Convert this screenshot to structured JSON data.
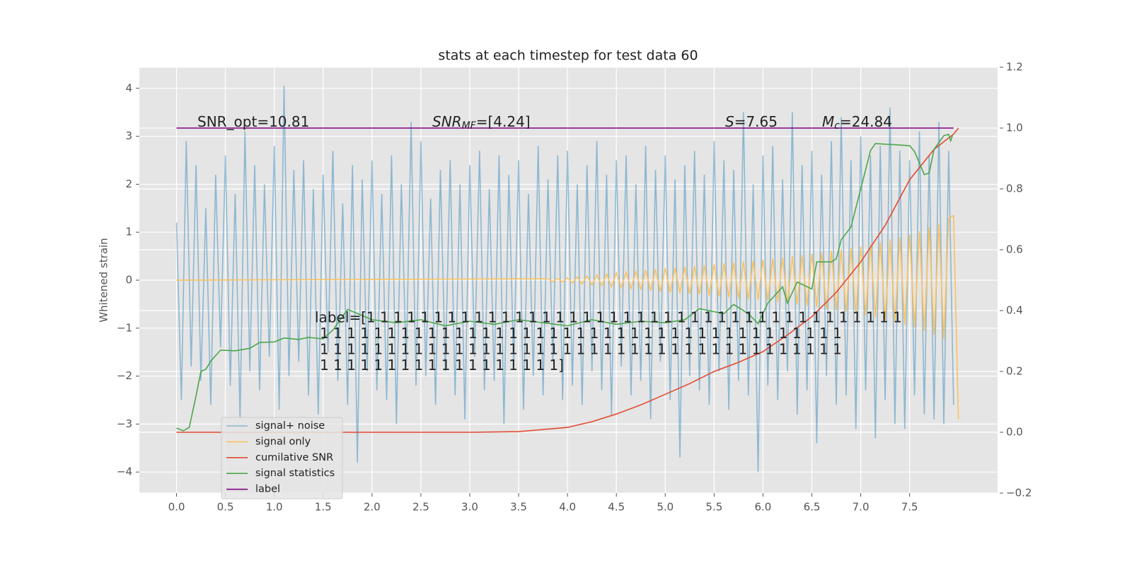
{
  "chart_data": {
    "type": "line",
    "title": "stats at each timestep for test data 60",
    "ylabel": "Whitened strain",
    "xlim": [
      -0.38,
      8.4
    ],
    "ylim": [
      -4.44,
      4.44
    ],
    "y2lim": [
      -0.2,
      1.2
    ],
    "xticks": [
      {
        "value": 0,
        "label": "0.0"
      },
      0.5,
      {
        "value": 1,
        "label": "1.0"
      },
      1.5,
      {
        "value": 2,
        "label": "2.0"
      },
      2.5,
      {
        "value": 3,
        "label": "3.0"
      },
      3.5,
      {
        "value": 4,
        "label": "4.0"
      },
      4.5,
      {
        "value": 5,
        "label": "5.0"
      },
      5.5,
      {
        "value": 6,
        "label": "6.0"
      },
      6.5,
      {
        "value": 7,
        "label": "7.0"
      },
      7.5
    ],
    "yticks": [
      {
        "value": -4,
        "label": "−4"
      },
      {
        "value": -3,
        "label": "−3"
      },
      {
        "value": -2,
        "label": "−2"
      },
      {
        "value": -1,
        "label": "−1"
      },
      0,
      1,
      2,
      3,
      4
    ],
    "y2ticks": [
      {
        "value": -0.2,
        "label": "−0.2"
      },
      {
        "value": 0,
        "label": "0.0"
      },
      0.2,
      0.4,
      0.6,
      0.8,
      {
        "value": 1,
        "label": "1.0"
      },
      1.2
    ],
    "grid": true,
    "legend": "lower left",
    "series": [
      {
        "name": "signal+ noise",
        "color": "#348ABD",
        "x": [
          0,
          0.05,
          0.1,
          0.15,
          0.2,
          0.25,
          0.3,
          0.35,
          0.4,
          0.45,
          0.5,
          0.55,
          0.6,
          0.65,
          0.7,
          0.75,
          0.8,
          0.85,
          0.9,
          0.95,
          1,
          1.05,
          1.1,
          1.15,
          1.2,
          1.25,
          1.3,
          1.35,
          1.4,
          1.45,
          1.5,
          1.55,
          1.6,
          1.65,
          1.7,
          1.75,
          1.8,
          1.85,
          1.9,
          1.95,
          2,
          2.05,
          2.1,
          2.15,
          2.2,
          2.25,
          2.3,
          2.35,
          2.4,
          2.45,
          2.5,
          2.55,
          2.6,
          2.65,
          2.7,
          2.75,
          2.8,
          2.85,
          2.9,
          2.95,
          3,
          3.05,
          3.1,
          3.15,
          3.2,
          3.25,
          3.3,
          3.35,
          3.4,
          3.45,
          3.5,
          3.55,
          3.6,
          3.65,
          3.7,
          3.75,
          3.8,
          3.85,
          3.9,
          3.95,
          4,
          4.05,
          4.1,
          4.15,
          4.2,
          4.25,
          4.3,
          4.35,
          4.4,
          4.45,
          4.5,
          4.55,
          4.6,
          4.65,
          4.7,
          4.75,
          4.8,
          4.85,
          4.9,
          4.95,
          5,
          5.05,
          5.1,
          5.15,
          5.2,
          5.25,
          5.3,
          5.35,
          5.4,
          5.45,
          5.5,
          5.55,
          5.6,
          5.65,
          5.7,
          5.75,
          5.8,
          5.85,
          5.9,
          5.95,
          6,
          6.05,
          6.1,
          6.15,
          6.2,
          6.25,
          6.3,
          6.35,
          6.4,
          6.45,
          6.5,
          6.55,
          6.6,
          6.65,
          6.7,
          6.75,
          6.8,
          6.85,
          6.9,
          6.95,
          7,
          7.05,
          7.1,
          7.15,
          7.2,
          7.25,
          7.3,
          7.35,
          7.4,
          7.45,
          7.5,
          7.55,
          7.6,
          7.65,
          7.7,
          7.75,
          7.8,
          7.85,
          7.9,
          7.95
        ],
        "values": [
          1.2,
          -2.5,
          2.9,
          -1.8,
          2.4,
          -2.1,
          1.5,
          -2.6,
          2.2,
          -1.4,
          2.6,
          -2.2,
          1.8,
          -2.9,
          3.1,
          -1.9,
          2.4,
          -2.3,
          2.0,
          -1.6,
          2.8,
          -2.7,
          4.05,
          -2.0,
          2.3,
          -1.7,
          2.5,
          -2.4,
          1.9,
          -2.8,
          2.2,
          -1.5,
          2.7,
          -2.1,
          1.6,
          -2.6,
          2.4,
          -3.8,
          2.1,
          -1.9,
          2.5,
          -2.3,
          1.8,
          -2.5,
          2.6,
          -3.0,
          2.0,
          -1.8,
          3.3,
          -2.2,
          2.9,
          -2.0,
          1.7,
          -2.6,
          2.3,
          -1.9,
          2.5,
          -2.4,
          2.0,
          -2.9,
          2.4,
          -1.6,
          2.7,
          -2.3,
          1.9,
          -2.1,
          2.6,
          -3.0,
          2.2,
          -1.8,
          2.5,
          -2.7,
          1.8,
          -2.0,
          2.8,
          -2.4,
          2.1,
          -1.7,
          2.6,
          -2.5,
          2.7,
          -2.2,
          2.0,
          -2.6,
          2.4,
          -1.9,
          2.9,
          -2.3,
          2.2,
          -2.8,
          2.5,
          -1.8,
          2.6,
          -2.4,
          2.0,
          -2.1,
          2.8,
          -2.9,
          2.3,
          -1.7,
          2.6,
          -2.5,
          2.1,
          -3.7,
          2.4,
          -2.0,
          2.7,
          -2.3,
          2.2,
          -2.6,
          2.9,
          -1.9,
          2.5,
          -2.7,
          2.3,
          -2.1,
          3.5,
          -2.4,
          2.0,
          -4.0,
          2.6,
          -2.2,
          2.8,
          -2.5,
          2.1,
          -1.9,
          3.5,
          -2.8,
          2.4,
          -2.3,
          2.7,
          -3.4,
          2.2,
          -2.0,
          2.9,
          -2.6,
          3.4,
          -2.4,
          2.5,
          -3.1,
          3.0,
          -2.3,
          2.6,
          -3.3,
          2.8,
          -2.5,
          3.6,
          -3.0,
          2.7,
          -3.1,
          2.5,
          -2.4,
          3.1,
          -2.8,
          2.6,
          -2.9,
          3.3,
          -3.0,
          2.7,
          -2.6
        ]
      },
      {
        "name": "signal only",
        "color": "#FBC15E",
        "x": [
          0,
          3.8,
          3.85,
          3.9,
          3.95,
          4,
          4.05,
          4.1,
          4.15,
          4.2,
          4.25,
          4.3,
          4.35,
          4.4,
          4.45,
          4.5,
          4.55,
          4.6,
          4.65,
          4.7,
          4.75,
          4.8,
          4.85,
          4.9,
          4.95,
          5,
          5.05,
          5.1,
          5.15,
          5.2,
          5.25,
          5.3,
          5.35,
          5.4,
          5.45,
          5.5,
          5.55,
          5.6,
          5.65,
          5.7,
          5.75,
          5.8,
          5.85,
          5.9,
          5.95,
          6,
          6.05,
          6.1,
          6.15,
          6.2,
          6.25,
          6.3,
          6.35,
          6.4,
          6.45,
          6.5,
          6.55,
          6.6,
          6.65,
          6.7,
          6.75,
          6.8,
          6.85,
          6.9,
          6.95,
          7,
          7.05,
          7.1,
          7.15,
          7.2,
          7.25,
          7.3,
          7.35,
          7.4,
          7.45,
          7.5,
          7.55,
          7.6,
          7.65,
          7.7,
          7.75,
          7.8,
          7.85,
          7.9,
          7.95,
          8
        ],
        "values": [
          0,
          0.03,
          -0.03,
          0.04,
          -0.04,
          0.05,
          -0.06,
          0.07,
          -0.08,
          0.09,
          -0.1,
          0.11,
          -0.12,
          0.13,
          -0.14,
          0.15,
          -0.16,
          0.17,
          -0.18,
          0.19,
          -0.2,
          0.21,
          -0.22,
          0.23,
          -0.24,
          0.25,
          -0.26,
          0.26,
          -0.27,
          0.28,
          -0.29,
          0.3,
          -0.3,
          0.31,
          -0.32,
          0.33,
          -0.34,
          0.35,
          -0.36,
          0.37,
          -0.38,
          0.39,
          -0.4,
          0.4,
          -0.41,
          0.42,
          -0.43,
          0.45,
          -0.46,
          0.47,
          -0.49,
          0.5,
          -0.51,
          0.52,
          -0.54,
          0.55,
          -0.57,
          0.58,
          -0.6,
          0.61,
          -0.63,
          0.64,
          -0.66,
          0.67,
          -0.69,
          0.7,
          -0.73,
          0.75,
          -0.78,
          0.8,
          -0.83,
          0.85,
          -0.88,
          0.9,
          -0.93,
          0.95,
          -0.99,
          1.02,
          -1.06,
          1.1,
          -1.14,
          1.18,
          -1.23,
          1.28,
          1.35,
          -2.9
        ]
      },
      {
        "name": "cumilative SNR",
        "color": "#E24A33",
        "axis": "y2",
        "x": [
          0,
          1,
          2,
          3,
          3.5,
          4,
          4.25,
          4.5,
          4.75,
          5,
          5.25,
          5.5,
          5.75,
          6,
          6.25,
          6.5,
          6.75,
          7,
          7.25,
          7.5,
          7.75,
          7.95,
          8
        ],
        "values": [
          0,
          0,
          0,
          0,
          0.002,
          0.016,
          0.035,
          0.06,
          0.09,
          0.125,
          0.16,
          0.2,
          0.23,
          0.265,
          0.32,
          0.38,
          0.46,
          0.56,
          0.68,
          0.83,
          0.93,
          0.98,
          1.0
        ]
      },
      {
        "name": "signal statistics",
        "color": "#4CA64C",
        "axis": "y2",
        "x": [
          0,
          0.07,
          0.13,
          0.2,
          0.25,
          0.3,
          0.35,
          0.45,
          0.6,
          0.75,
          0.85,
          1,
          1.1,
          1.25,
          1.35,
          1.5,
          1.6,
          1.75,
          2,
          2.25,
          2.5,
          2.75,
          3,
          3.25,
          3.5,
          3.75,
          4,
          4.25,
          4.5,
          4.75,
          5,
          5.2,
          5.35,
          5.6,
          5.7,
          5.85,
          5.95,
          6.05,
          6.2,
          6.25,
          6.35,
          6.5,
          6.55,
          6.7,
          6.75,
          6.8,
          6.9,
          7,
          7.1,
          7.15,
          7.5,
          7.55,
          7.65,
          7.7,
          7.75,
          7.85,
          7.9,
          7.92,
          7.94
        ],
        "values": [
          0.014,
          0.005,
          0.016,
          0.12,
          0.2,
          0.207,
          0.234,
          0.27,
          0.268,
          0.276,
          0.295,
          0.297,
          0.31,
          0.305,
          0.312,
          0.307,
          0.336,
          0.404,
          0.37,
          0.36,
          0.37,
          0.35,
          0.365,
          0.355,
          0.37,
          0.36,
          0.35,
          0.37,
          0.355,
          0.365,
          0.36,
          0.37,
          0.406,
          0.39,
          0.42,
          0.39,
          0.357,
          0.425,
          0.478,
          0.425,
          0.494,
          0.471,
          0.56,
          0.56,
          0.57,
          0.633,
          0.675,
          0.8,
          0.926,
          0.949,
          0.942,
          0.923,
          0.847,
          0.852,
          0.93,
          0.975,
          0.979,
          0.958,
          0.977
        ]
      },
      {
        "name": "label",
        "color": "#800080",
        "axis": "y2",
        "x": [
          0,
          7.95
        ],
        "values": [
          1,
          1
        ]
      }
    ],
    "annotations": [
      {
        "text": "SNR_opt=10.81"
      },
      {
        "text": "SNR",
        "sub": "MF",
        "tail": "=[4.24]"
      },
      {
        "text": "S",
        "tail": "=7.65"
      },
      {
        "text": "M",
        "sub": "c",
        "tail": "=24.84"
      }
    ],
    "label_text": [
      "label=[1 1 1 1 1 1 1 1 1 1 1 1 1 1 1 1 1 1 1 1 1 1 1 1 1 1 1 1 1 1 1 1 1 1 1 1 1 1 1 1",
      "1 1 1 1 1 1 1 1 1 1 1 1 1 1 1 1 1 1 1 1 1 1 1 1 1 1 1 1 1 1 1 1 1 1 1 1 1 1 1",
      "1 1 1 1 1 1 1 1 1 1 1 1 1 1 1 1 1 1 1 1 1 1 1 1 1 1 1 1 1 1 1 1 1 1 1 1 1 1 1",
      "1 1 1 1 1 1 1 1 1 1 1 1 1 1 1 1 1 1]"
    ]
  }
}
